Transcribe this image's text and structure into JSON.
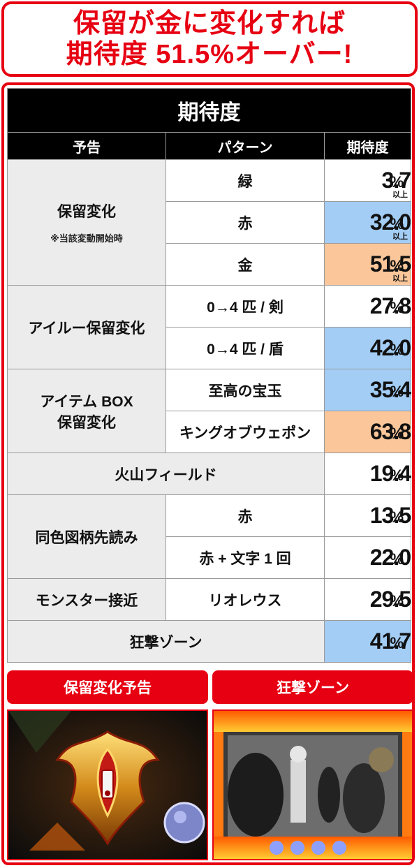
{
  "headline": {
    "line1": "保留が金に変化すれば",
    "line2": "期待度 51.5%オーバー!"
  },
  "table": {
    "title": "期待度",
    "headers": [
      "予告",
      "パターン",
      "期待度"
    ],
    "percent_sign": "%",
    "ijo": "以上",
    "groups": {
      "hold_change": {
        "label": "保留変化",
        "note": "※当該変動開始時",
        "rows": [
          {
            "pattern": "緑",
            "value": "3.7",
            "highlight": "none"
          },
          {
            "pattern": "赤",
            "value": "32.0",
            "highlight": "blue"
          },
          {
            "pattern": "金",
            "value": "51.5",
            "highlight": "orange"
          }
        ]
      },
      "airou": {
        "label": "アイルー保留変化",
        "rows": [
          {
            "pattern": "0→4 匹 / 剣",
            "value": "27.8",
            "highlight": "none"
          },
          {
            "pattern": "0→4 匹 / 盾",
            "value": "42.0",
            "highlight": "blue"
          }
        ]
      },
      "item_box": {
        "label_line1": "アイテム BOX",
        "label_line2": "保留変化",
        "rows": [
          {
            "pattern": "至高の宝玉",
            "value": "35.4",
            "highlight": "blue"
          },
          {
            "pattern": "キングオブウェポン",
            "value": "63.8",
            "highlight": "orange"
          }
        ]
      },
      "volcano": {
        "label": "火山フィールド",
        "value": "19.4",
        "highlight": "none"
      },
      "same_color": {
        "label": "同色図柄先読み",
        "rows": [
          {
            "pattern": "赤",
            "value": "13.5",
            "highlight": "none"
          },
          {
            "pattern": "赤 + 文字 1 回",
            "value": "22.0",
            "highlight": "none"
          }
        ]
      },
      "monster": {
        "label": "モンスター接近",
        "pattern": "リオレウス",
        "value": "29.5",
        "highlight": "none"
      },
      "kyogeki": {
        "label": "狂撃ゾーン",
        "value": "41.7",
        "highlight": "blue"
      }
    }
  },
  "panels": {
    "left_label": "保留変化予告",
    "right_label": "狂撃ゾーン"
  },
  "colors": {
    "accent_red": "#e60012",
    "highlight_blue": "#a3cdf5",
    "highlight_orange": "#fbc79a"
  }
}
